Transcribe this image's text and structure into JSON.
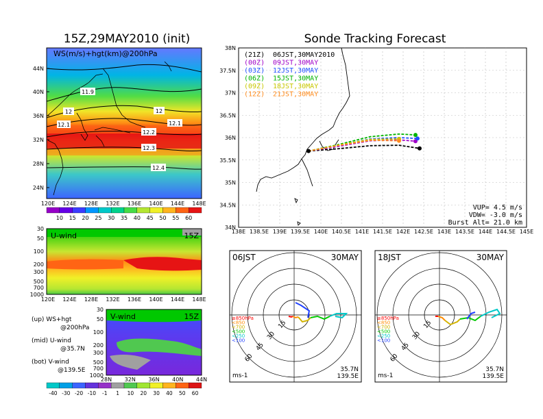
{
  "titles": {
    "left": "15Z,29MAY2010 (init)",
    "right": "Sonde Tracking Forecast"
  },
  "ws_map": {
    "label": "WS(m/s)+hgt(km)@200hPa",
    "lat_ticks": [
      "44N",
      "40N",
      "36N",
      "32N",
      "28N",
      "24N"
    ],
    "lon_ticks": [
      "120E",
      "124E",
      "128E",
      "132E",
      "136E",
      "140E",
      "144E",
      "148E"
    ],
    "contours": [
      "11.9",
      "12",
      "12",
      "12.1",
      "12.1",
      "12.2",
      "12.3",
      "12.4"
    ]
  },
  "ws_colorbar": {
    "labels": [
      "10",
      "15",
      "20",
      "25",
      "30",
      "35",
      "40",
      "45",
      "50",
      "55",
      "60"
    ]
  },
  "uwind": {
    "label": "U-wind",
    "time": "15Z",
    "p_ticks": [
      "30",
      "50",
      "100",
      "200",
      "300",
      "500",
      "700",
      "1000"
    ],
    "lon_ticks": [
      "120E",
      "124E",
      "128E",
      "132E",
      "136E",
      "140E",
      "144E",
      "148E"
    ]
  },
  "vwind": {
    "label": "V-wind",
    "time": "15Z",
    "p_ticks": [
      "30",
      "50",
      "100",
      "200",
      "300",
      "500",
      "700",
      "1000"
    ],
    "lat_ticks": [
      "28N",
      "32N",
      "36N",
      "40N",
      "44N"
    ]
  },
  "legend_text": {
    "up1": "(up) WS+hgt",
    "up2": "@200hPa",
    "mid1": "(mid) U-wind",
    "mid2": "@35.7N",
    "bot1": "(bot) V-wind",
    "bot2": "@139.5E"
  },
  "v_colorbar": {
    "labels": [
      "-40",
      "-30",
      "-20",
      "-10",
      "-1",
      "1",
      "10",
      "20",
      "30",
      "40",
      "50",
      "60"
    ]
  },
  "chart_data": [
    {
      "type": "line",
      "title": "Sonde Tracking Forecast",
      "lat_ticks": [
        "38N",
        "37.5N",
        "37N",
        "36.5N",
        "36N",
        "35.5N",
        "35N",
        "34.5N",
        "34N"
      ],
      "lon_ticks": [
        "138E",
        "138.5E",
        "139E",
        "139.5E",
        "140E",
        "140.5E",
        "141E",
        "141.5E",
        "142E",
        "142.5E",
        "143E",
        "143.5E",
        "144E",
        "144.5E",
        "145E"
      ],
      "xlim": [
        138,
        145
      ],
      "ylim": [
        34,
        38
      ],
      "legend": [
        {
          "code": "(21Z)",
          "time": "06JST,30MAY2010",
          "color": "#000000"
        },
        {
          "code": "(00Z)",
          "time": "09JST,30MAY",
          "color": "#a000c8"
        },
        {
          "code": "(03Z)",
          "time": "12JST,30MAY",
          "color": "#2050ff"
        },
        {
          "code": "(06Z)",
          "time": "15JST,30MAY",
          "color": "#00b400"
        },
        {
          "code": "(09Z)",
          "time": "18JST,30MAY",
          "color": "#c8c800"
        },
        {
          "code": "(12Z)",
          "time": "21JST,30MAY",
          "color": "#ff8c1e"
        }
      ],
      "series": [
        {
          "name": "(21Z)",
          "color": "#000000",
          "x": [
            139.7,
            140.4,
            141.2,
            141.9,
            142.4
          ],
          "y": [
            35.7,
            35.75,
            35.82,
            35.83,
            35.76
          ]
        },
        {
          "name": "(00Z)",
          "color": "#a000c8",
          "x": [
            139.7,
            140.4,
            141.2,
            141.9,
            142.3
          ],
          "y": [
            35.7,
            35.8,
            35.93,
            35.95,
            35.92
          ]
        },
        {
          "name": "(03Z)",
          "color": "#2050ff",
          "x": [
            139.7,
            140.4,
            141.2,
            141.9,
            142.35
          ],
          "y": [
            35.7,
            35.82,
            35.97,
            36.0,
            35.98
          ]
        },
        {
          "name": "(06Z)",
          "color": "#00b400",
          "x": [
            139.7,
            140.4,
            141.2,
            141.9,
            142.3
          ],
          "y": [
            35.7,
            35.84,
            36.02,
            36.08,
            36.06
          ]
        },
        {
          "name": "(09Z)",
          "color": "#c8c800",
          "x": [
            139.7,
            140.4,
            141.2,
            141.9
          ],
          "y": [
            35.7,
            35.83,
            35.96,
            35.97
          ]
        },
        {
          "name": "(12Z)",
          "color": "#ff8c1e",
          "x": [
            139.7,
            140.4,
            141.2,
            141.9
          ],
          "y": [
            35.7,
            35.82,
            35.94,
            35.93
          ]
        }
      ],
      "annotations": [
        "VUP= 4.5 m/s",
        "VDW= -3.0 m/s",
        "Burst Alt= 21.0 km"
      ]
    }
  ],
  "hodographs": [
    {
      "time": "06JST",
      "date": "30MAY",
      "rings": [
        "15",
        "30",
        "45",
        "60"
      ],
      "lat": "35.7N",
      "lon": "139.5E",
      "unit": "ms-1"
    },
    {
      "time": "18JST",
      "date": "30MAY",
      "rings": [
        "15",
        "30",
        "45",
        "60"
      ],
      "lat": "35.7N",
      "lon": "139.5E",
      "unit": "ms-1"
    }
  ],
  "hodo_levels": [
    {
      "label": "≥850hPa",
      "color": "#ff0000"
    },
    {
      "label": "<850",
      "color": "#ff8c00"
    },
    {
      "label": "<700",
      "color": "#d2b400"
    },
    {
      "label": "<500",
      "color": "#00c800"
    },
    {
      "label": "<250",
      "color": "#00c8c8"
    },
    {
      "label": "<100",
      "color": "#2040ff"
    }
  ],
  "colors": {
    "ws_scale": [
      "#9600c8",
      "#6400e6",
      "#3c3cff",
      "#0096ff",
      "#00c8c8",
      "#00d28c",
      "#46dc46",
      "#b4e632",
      "#f0f028",
      "#ffb41e",
      "#ff6414",
      "#e61414"
    ],
    "v_scale": [
      "#00c8c8",
      "#00a0e6",
      "#3c64ff",
      "#6432dc",
      "#9632c8",
      "#a0a0a0",
      "#50c850",
      "#a0e632",
      "#f0f028",
      "#ffb41e",
      "#ff6414",
      "#dc1414"
    ]
  }
}
